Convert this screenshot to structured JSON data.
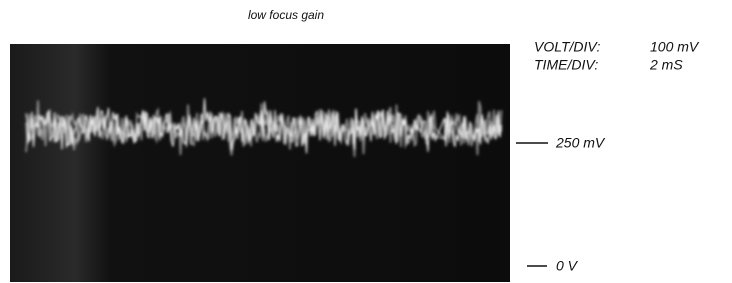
{
  "caption": "low focus gain",
  "settings": {
    "volt_div": {
      "label": "VOLT/DIV:",
      "value": "100 mV"
    },
    "time_div": {
      "label": "TIME/DIV:",
      "value": "2 mS"
    }
  },
  "levels": {
    "upper": "250 mV",
    "lower": "0 V"
  }
}
